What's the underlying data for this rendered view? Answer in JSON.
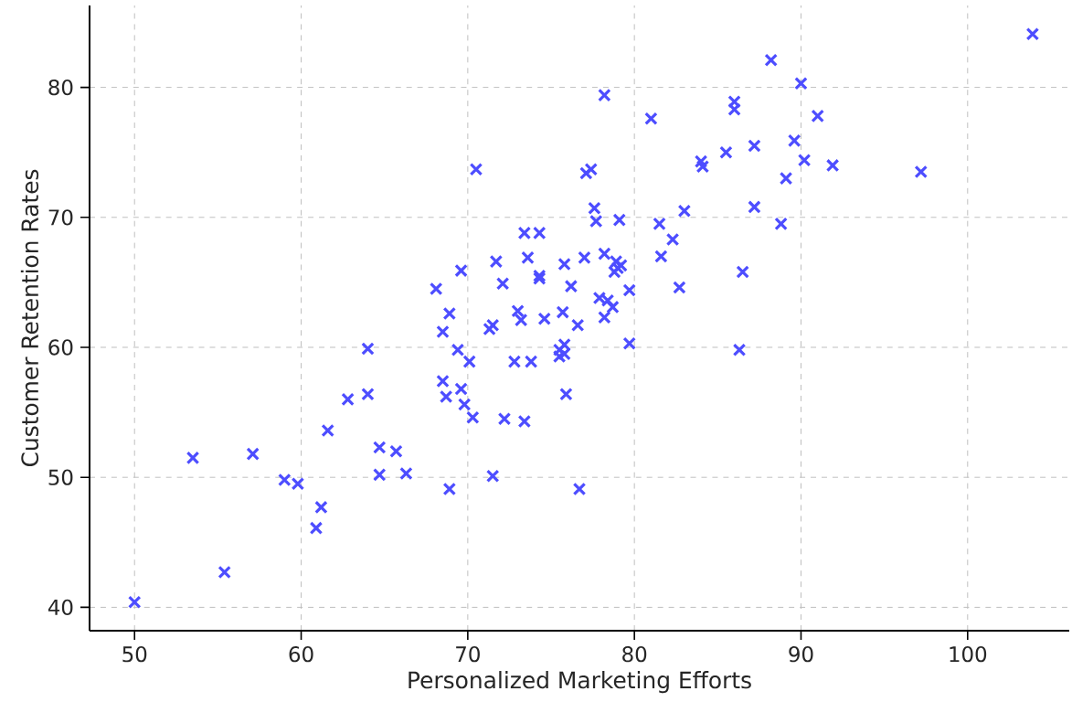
{
  "chart_data": {
    "type": "scatter",
    "xlabel": "Personalized Marketing Efforts",
    "ylabel": "Customer Retention Rates",
    "xlim": [
      47.3,
      106.1
    ],
    "ylim": [
      38.2,
      86.3
    ],
    "xticks": [
      50,
      60,
      70,
      80,
      90,
      100
    ],
    "yticks": [
      40,
      50,
      60,
      70,
      80
    ],
    "grid": true,
    "marker": "cross",
    "color": "#4d4dff",
    "x": [
      50.0,
      53.5,
      55.4,
      57.1,
      59.0,
      59.8,
      60.9,
      61.2,
      61.6,
      62.8,
      64.0,
      64.0,
      64.7,
      64.7,
      65.7,
      66.3,
      68.1,
      68.5,
      68.5,
      68.7,
      68.9,
      68.9,
      69.4,
      69.6,
      69.6,
      69.8,
      70.1,
      70.3,
      70.5,
      71.3,
      71.5,
      71.5,
      71.7,
      72.1,
      72.2,
      72.8,
      73.0,
      73.2,
      73.4,
      73.4,
      73.6,
      73.8,
      74.3,
      74.3,
      74.3,
      74.6,
      75.5,
      75.5,
      75.8,
      75.7,
      75.8,
      75.8,
      75.9,
      76.2,
      76.6,
      76.7,
      77.0,
      77.1,
      77.4,
      77.6,
      77.7,
      77.9,
      78.2,
      78.2,
      78.2,
      78.4,
      78.7,
      78.9,
      79.0,
      78.8,
      79.2,
      79.1,
      79.7,
      79.7,
      81.0,
      81.5,
      81.6,
      82.3,
      82.7,
      83.0,
      84.0,
      84.1,
      85.5,
      86.0,
      86.0,
      86.3,
      86.5,
      87.2,
      87.2,
      88.2,
      88.8,
      89.1,
      89.6,
      90.0,
      90.2,
      91.0,
      91.9,
      97.2,
      103.9
    ],
    "values": [
      40.4,
      51.5,
      42.7,
      51.8,
      49.8,
      49.5,
      46.1,
      47.7,
      53.6,
      56.0,
      56.4,
      59.9,
      52.3,
      50.2,
      52.0,
      50.3,
      64.5,
      61.2,
      57.4,
      56.2,
      62.6,
      49.1,
      59.8,
      65.9,
      56.8,
      55.6,
      58.9,
      54.6,
      73.7,
      61.4,
      61.7,
      50.1,
      66.6,
      64.9,
      54.5,
      58.9,
      62.8,
      62.1,
      68.8,
      54.3,
      66.9,
      58.9,
      68.8,
      65.5,
      65.3,
      62.2,
      59.8,
      59.3,
      59.5,
      62.7,
      60.2,
      66.4,
      56.4,
      64.7,
      61.7,
      49.1,
      66.9,
      73.4,
      73.7,
      70.7,
      69.7,
      63.8,
      62.3,
      67.2,
      79.4,
      63.6,
      63.1,
      66.6,
      66.1,
      65.8,
      66.3,
      69.8,
      64.4,
      60.3,
      77.6,
      69.5,
      67.0,
      68.3,
      64.6,
      70.5,
      74.3,
      73.9,
      75.0,
      78.9,
      78.3,
      59.8,
      65.8,
      75.5,
      70.8,
      82.1,
      69.5,
      73.0,
      75.9,
      80.3,
      74.4,
      77.8,
      74.0,
      73.5,
      84.1
    ]
  }
}
